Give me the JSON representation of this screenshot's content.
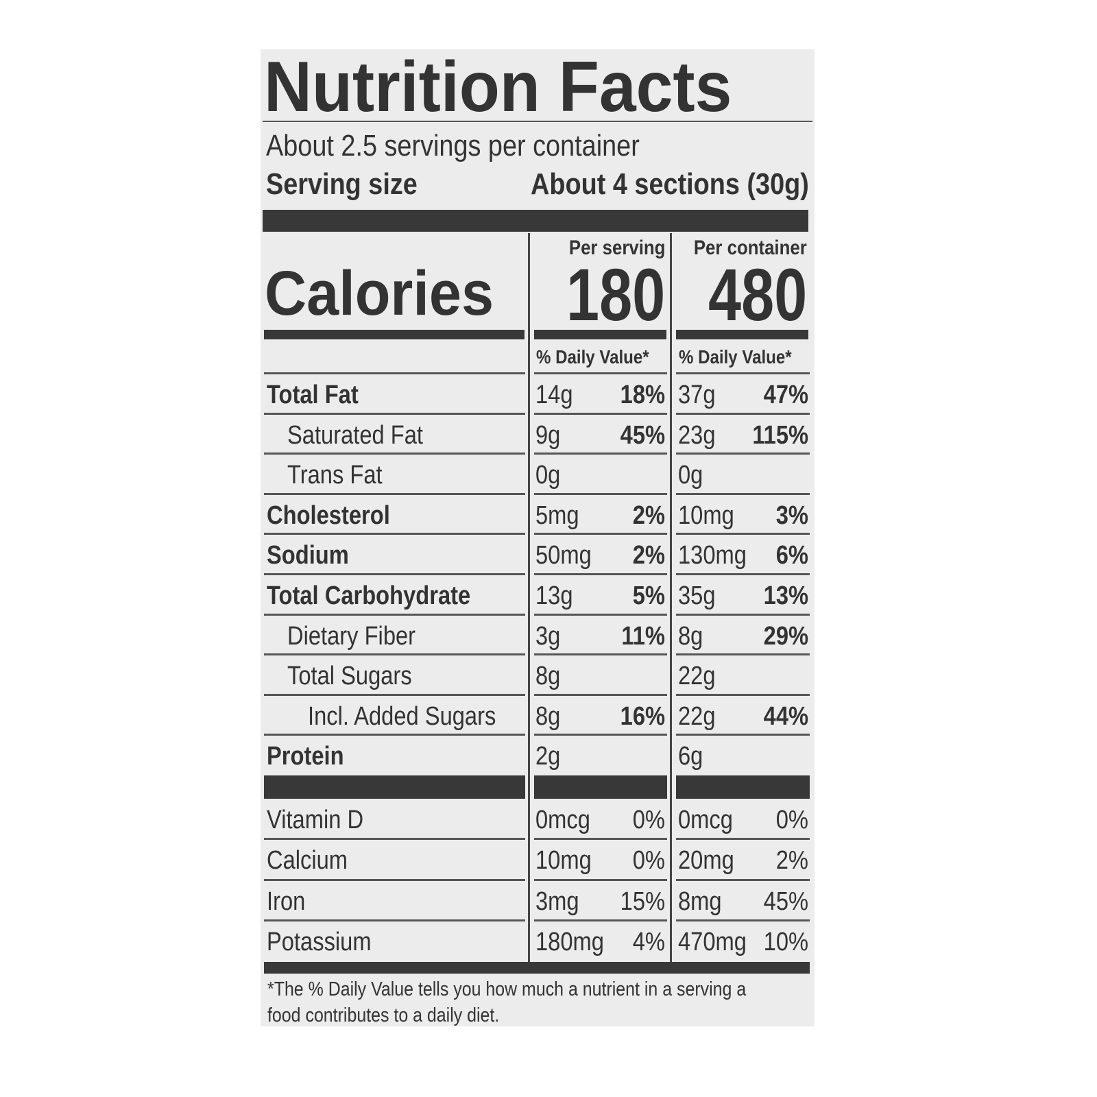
{
  "title": "Nutrition Facts",
  "servings_per_container": "About 2.5 servings per container",
  "serving_size_label": "Serving size",
  "serving_size_value": "About 4 sections (30g)",
  "columns": [
    {
      "header": "Per serving",
      "calories": "180",
      "dv_header": "% Daily Value*"
    },
    {
      "header": "Per container",
      "calories": "480",
      "dv_header": "% Daily Value*"
    }
  ],
  "calories_label": "Calories",
  "nutrients": [
    {
      "name": "Total Fat",
      "bold": true,
      "indent": 0,
      "serving": {
        "amount": "14g",
        "dv": "18%"
      },
      "container": {
        "amount": "37g",
        "dv": "47%"
      }
    },
    {
      "name": "Saturated Fat",
      "bold": false,
      "indent": 1,
      "serving": {
        "amount": "9g",
        "dv": "45%"
      },
      "container": {
        "amount": "23g",
        "dv": "115%"
      }
    },
    {
      "name": "Trans Fat",
      "bold": false,
      "indent": 1,
      "serving": {
        "amount": "0g",
        "dv": ""
      },
      "container": {
        "amount": "0g",
        "dv": ""
      }
    },
    {
      "name": "Cholesterol",
      "bold": true,
      "indent": 0,
      "serving": {
        "amount": "5mg",
        "dv": "2%"
      },
      "container": {
        "amount": "10mg",
        "dv": "3%"
      }
    },
    {
      "name": "Sodium",
      "bold": true,
      "indent": 0,
      "serving": {
        "amount": "50mg",
        "dv": "2%"
      },
      "container": {
        "amount": "130mg",
        "dv": "6%"
      }
    },
    {
      "name": "Total Carbohydrate",
      "bold": true,
      "indent": 0,
      "serving": {
        "amount": "13g",
        "dv": "5%"
      },
      "container": {
        "amount": "35g",
        "dv": "13%"
      }
    },
    {
      "name": "Dietary Fiber",
      "bold": false,
      "indent": 1,
      "serving": {
        "amount": "3g",
        "dv": "11%"
      },
      "container": {
        "amount": "8g",
        "dv": "29%"
      }
    },
    {
      "name": "Total Sugars",
      "bold": false,
      "indent": 1,
      "serving": {
        "amount": "8g",
        "dv": ""
      },
      "container": {
        "amount": "22g",
        "dv": ""
      }
    },
    {
      "name": "Incl. Added Sugars",
      "bold": false,
      "indent": 2,
      "serving": {
        "amount": "8g",
        "dv": "16%"
      },
      "container": {
        "amount": "22g",
        "dv": "44%"
      }
    },
    {
      "name": "Protein",
      "bold": true,
      "indent": 0,
      "serving": {
        "amount": "2g",
        "dv": ""
      },
      "container": {
        "amount": "6g",
        "dv": ""
      }
    }
  ],
  "vitamins": [
    {
      "name": "Vitamin D",
      "serving": {
        "amount": "0mcg",
        "dv": "0%"
      },
      "container": {
        "amount": "0mcg",
        "dv": "0%"
      }
    },
    {
      "name": "Calcium",
      "serving": {
        "amount": "10mg",
        "dv": "0%"
      },
      "container": {
        "amount": "20mg",
        "dv": "2%"
      }
    },
    {
      "name": "Iron",
      "serving": {
        "amount": "3mg",
        "dv": "15%"
      },
      "container": {
        "amount": "8mg",
        "dv": "45%"
      }
    },
    {
      "name": "Potassium",
      "serving": {
        "amount": "180mg",
        "dv": "4%"
      },
      "container": {
        "amount": "470mg",
        "dv": "10%"
      }
    }
  ],
  "footnote_line1": "*The % Daily Value tells you how much a nutrient in a serving a",
  "footnote_line2": "food contributes to a daily diet."
}
